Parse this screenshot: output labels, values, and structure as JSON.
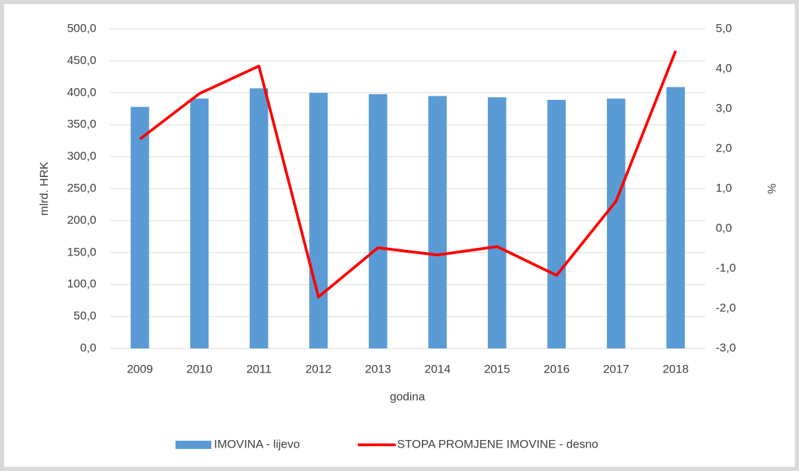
{
  "chart_data": {
    "type": "bar_line",
    "categories": [
      "2009",
      "2010",
      "2011",
      "2012",
      "2013",
      "2014",
      "2015",
      "2016",
      "2017",
      "2018"
    ],
    "x_label": "godina",
    "y_label": "mlrd. HRK",
    "y2_label": "%",
    "series": [
      {
        "name": "IMOVINA - lijevo",
        "type": "bar",
        "color": "#5b9bd5",
        "values": [
          378,
          391,
          407,
          400,
          398,
          395,
          393,
          389,
          391,
          409
        ]
      },
      {
        "name": "STOPA PROMJENE IMOVINE - desno",
        "type": "line",
        "axis": "y2",
        "color": "#ff0000",
        "values": [
          2.24,
          3.38,
          4.07,
          -1.71,
          -0.48,
          -0.66,
          -0.45,
          -1.17,
          0.69,
          4.45
        ]
      }
    ],
    "ylim": [
      0,
      500
    ],
    "yticks": [
      {
        "value": 0,
        "label": "0,0"
      },
      {
        "value": 50,
        "label": "50,0"
      },
      {
        "value": 100,
        "label": "100,0"
      },
      {
        "value": 150,
        "label": "150,0"
      },
      {
        "value": 200,
        "label": "200,0"
      },
      {
        "value": 250,
        "label": "250,0"
      },
      {
        "value": 300,
        "label": "300,0"
      },
      {
        "value": 350,
        "label": "350,0"
      },
      {
        "value": 400,
        "label": "400,0"
      },
      {
        "value": 450,
        "label": "450,0"
      },
      {
        "value": 500,
        "label": "500,0"
      }
    ],
    "y2lim": [
      -3,
      5
    ],
    "y2ticks": [
      {
        "value": -3,
        "label": "-3,0"
      },
      {
        "value": -2,
        "label": "-2,0"
      },
      {
        "value": -1,
        "label": "-1,0"
      },
      {
        "value": 0,
        "label": "0,0"
      },
      {
        "value": 1,
        "label": "1,0"
      },
      {
        "value": 2,
        "label": "2,0"
      },
      {
        "value": 3,
        "label": "3,0"
      },
      {
        "value": 4,
        "label": "4,0"
      },
      {
        "value": 5,
        "label": "5,0"
      }
    ],
    "grid": true,
    "legend": "bottom"
  }
}
